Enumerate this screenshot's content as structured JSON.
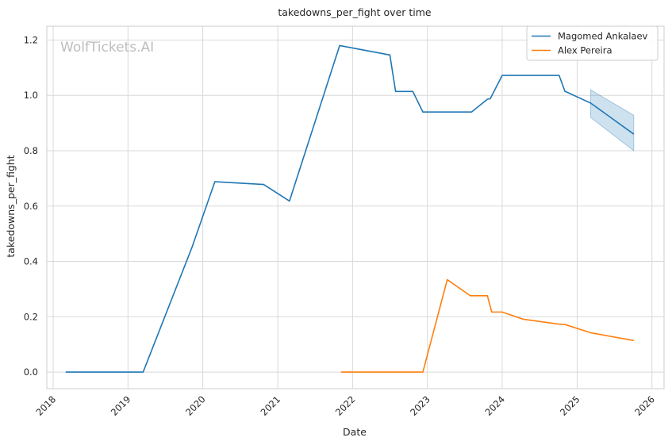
{
  "chart_data": {
    "type": "line",
    "title": "takedowns_per_fight over time",
    "xlabel": "Date",
    "ylabel": "takedowns_per_fight",
    "watermark": "WolfTickets.AI",
    "xlim": [
      "2017-12-01",
      "2026-03-01"
    ],
    "ylim": [
      -0.06,
      1.25
    ],
    "x_ticks": [
      "2018-01-01",
      "2019-01-01",
      "2020-01-01",
      "2021-01-01",
      "2022-01-01",
      "2023-01-01",
      "2024-01-01",
      "2025-01-01",
      "2026-01-01"
    ],
    "x_tick_labels": [
      "2018",
      "2019",
      "2020",
      "2021",
      "2022",
      "2023",
      "2024",
      "2025",
      "2026"
    ],
    "y_ticks": [
      0.0,
      0.2,
      0.4,
      0.6,
      0.8,
      1.0,
      1.2
    ],
    "y_tick_labels": [
      "0.0",
      "0.2",
      "0.4",
      "0.6",
      "0.8",
      "1.0",
      "1.2"
    ],
    "grid": true,
    "legend_position": "top-right",
    "series": [
      {
        "name": "Magomed Ankalaev",
        "color": "#1f77b4",
        "points": [
          [
            "2018-03-03",
            0.0
          ],
          [
            "2019-03-16",
            0.0
          ],
          [
            "2019-11-09",
            0.45
          ],
          [
            "2020-02-29",
            0.688
          ],
          [
            "2020-10-24",
            0.678
          ],
          [
            "2021-02-27",
            0.618
          ],
          [
            "2021-10-30",
            1.18
          ],
          [
            "2022-07-02",
            1.146
          ],
          [
            "2022-07-30",
            1.014
          ],
          [
            "2022-10-22",
            1.014
          ],
          [
            "2022-12-10",
            0.94
          ],
          [
            "2023-08-05",
            0.94
          ],
          [
            "2023-10-21",
            0.986
          ],
          [
            "2023-11-04",
            0.988
          ],
          [
            "2024-01-01",
            1.072
          ],
          [
            "2024-10-05",
            1.072
          ],
          [
            "2024-11-02",
            1.015
          ],
          [
            "2025-03-08",
            0.972
          ],
          [
            "2025-10-04",
            0.86
          ]
        ],
        "forecast_band": {
          "x": [
            "2025-03-08",
            "2025-10-04"
          ],
          "lower": [
            0.92,
            0.8
          ],
          "upper": [
            1.02,
            0.928
          ]
        }
      },
      {
        "name": "Alex Pereira",
        "color": "#ff7f0e",
        "points": [
          [
            "2021-11-06",
            0.0
          ],
          [
            "2022-12-10",
            0.0
          ],
          [
            "2023-04-08",
            0.334
          ],
          [
            "2023-07-29",
            0.276
          ],
          [
            "2023-10-21",
            0.276
          ],
          [
            "2023-11-11",
            0.217
          ],
          [
            "2024-01-01",
            0.217
          ],
          [
            "2024-04-13",
            0.191
          ],
          [
            "2024-10-05",
            0.173
          ],
          [
            "2024-11-02",
            0.172
          ],
          [
            "2025-03-08",
            0.142
          ],
          [
            "2025-10-04",
            0.114
          ]
        ]
      }
    ]
  }
}
